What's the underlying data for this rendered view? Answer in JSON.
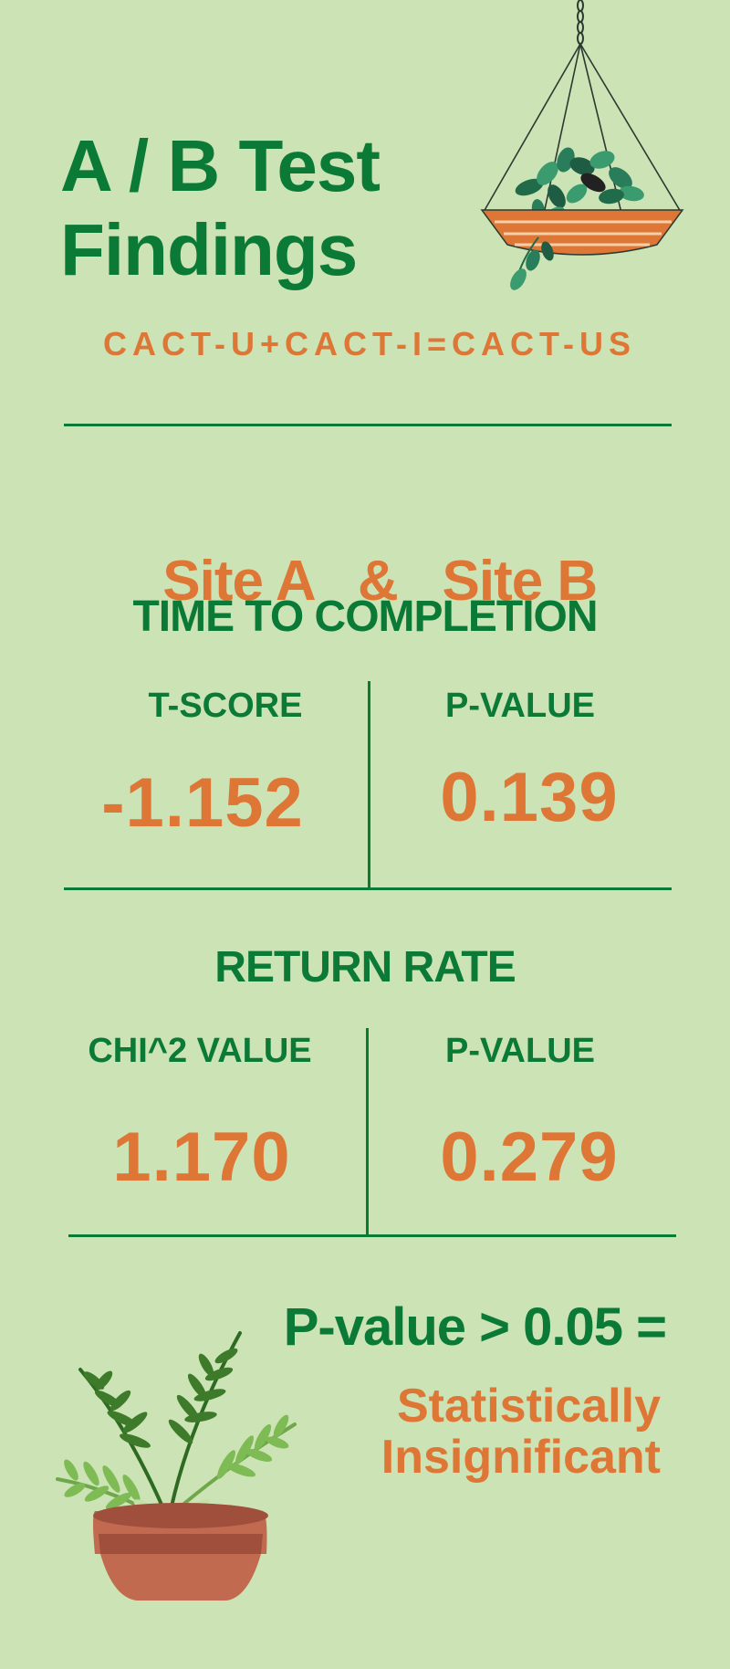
{
  "header": {
    "title_line1": "A / B Test",
    "title_line2": "Findings",
    "subtitle": "CACT-U+CACT-I=CACT-US"
  },
  "comparison": {
    "site_a": "Site A",
    "ampersand": "&",
    "site_b": "Site B"
  },
  "time_to_completion": {
    "title": "TIME TO COMPLETION",
    "left_label": "T-SCORE",
    "left_value": "-1.152",
    "right_label": "P-VALUE",
    "right_value": "0.139"
  },
  "return_rate": {
    "title": "RETURN RATE",
    "left_label": "CHI^2 VALUE",
    "left_value": "1.170",
    "right_label": "P-VALUE",
    "right_value": "0.279"
  },
  "conclusion": {
    "line1": "P-value > 0.05 =",
    "line2": "Statistically",
    "line3": "Insignificant"
  },
  "colors": {
    "background": "#cce3b5",
    "green": "#0a7a36",
    "orange": "#de7636"
  },
  "icons": {
    "top": "hanging-plant-icon",
    "bottom": "potted-fern-icon"
  }
}
